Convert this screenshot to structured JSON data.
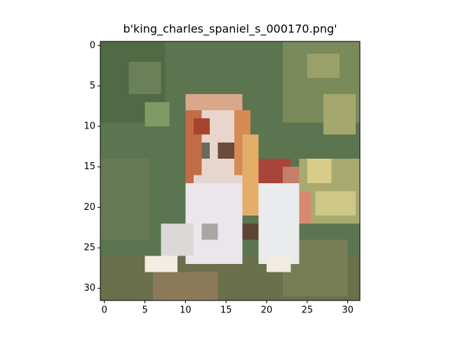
{
  "chart_data": {
    "type": "image",
    "title": "b'king_charles_spaniel_s_000170.png'",
    "xlim": [
      -0.5,
      31.5
    ],
    "ylim": [
      31.5,
      -0.5
    ],
    "xticks": [
      0,
      5,
      10,
      15,
      20,
      25,
      30
    ],
    "yticks": [
      0,
      5,
      10,
      15,
      20,
      25,
      30
    ]
  }
}
